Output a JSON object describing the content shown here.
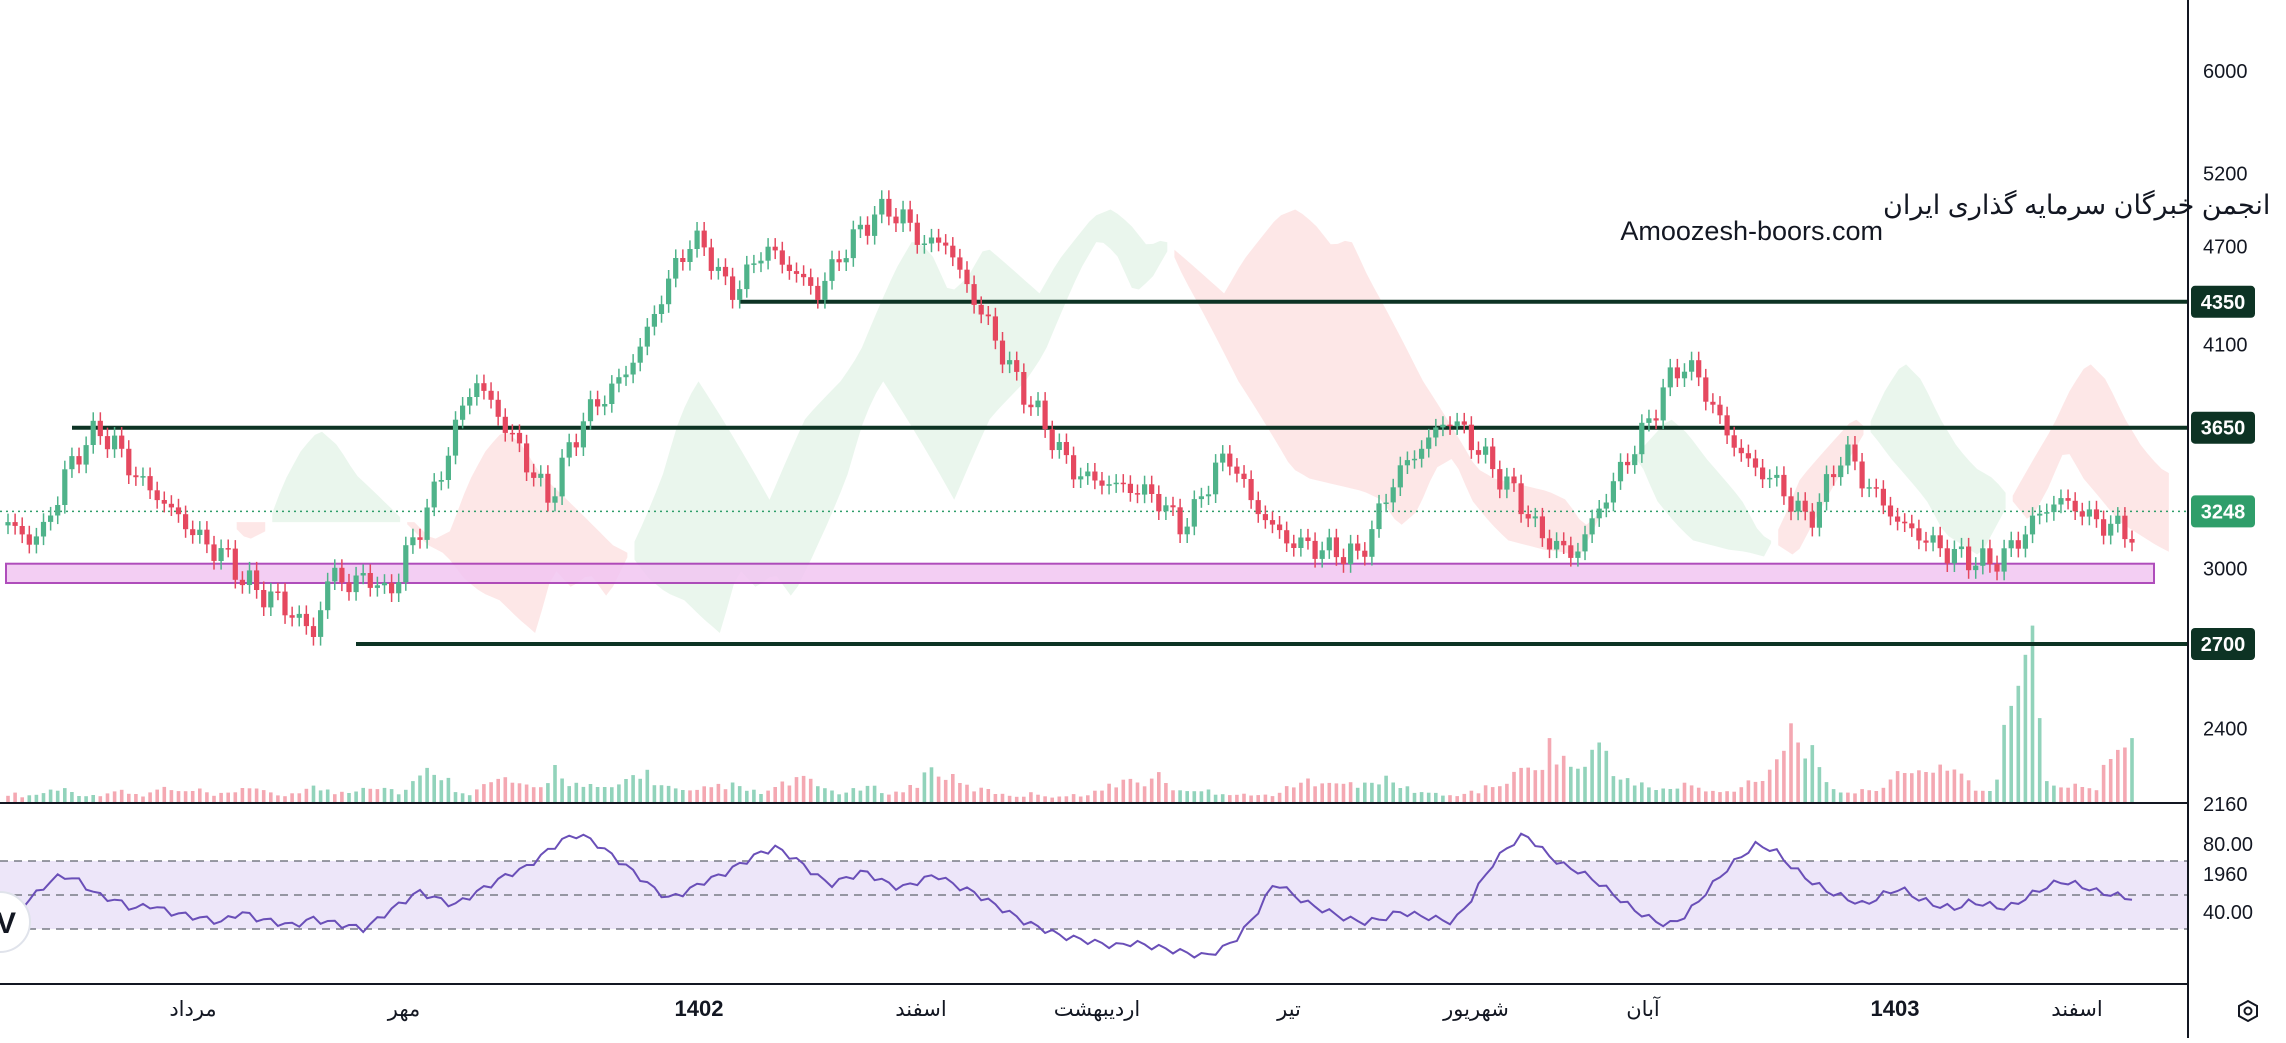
{
  "watermark": {
    "line1": "انجمن خبرگان سرمایه گذاری ایران",
    "line2": "Amoozesh-boors.com"
  },
  "colors": {
    "up": "#4fb38a",
    "down": "#e5485f",
    "level_line": "#0d3324",
    "zone_fill": "#f2c6f2",
    "zone_stroke": "#a22fb0",
    "cloud_green": "#e6f4ea",
    "cloud_red": "#fde3e3",
    "rsi_line": "#6a4fb8",
    "rsi_band": "#ede6f9",
    "last_price_badge": "#2f9e6a",
    "level_badge": "#0d3324"
  },
  "chart_data": [
    {
      "type": "candlestick",
      "price_axis_ticks": [
        "6000",
        "5200",
        "4700",
        "4100",
        "3000",
        "2400",
        "2160",
        "1960"
      ],
      "ylim": [
        1800,
        6300
      ],
      "scale": "log",
      "levels": [
        {
          "label": "4350",
          "value": 4350
        },
        {
          "label": "3650",
          "value": 3650
        },
        {
          "label": "2700",
          "value": 2700
        }
      ],
      "last_price": {
        "label": "3248",
        "value": 3248
      },
      "support_zone": [
        2940,
        3020
      ],
      "time_axis": [
        {
          "label": "مرداد",
          "major": false
        },
        {
          "label": "مهر",
          "major": false
        },
        {
          "label": "1402",
          "major": true
        },
        {
          "label": "اسفند",
          "major": false
        },
        {
          "label": "اردیبهشت",
          "major": false
        },
        {
          "label": "تیر",
          "major": false
        },
        {
          "label": "شهریور",
          "major": false
        },
        {
          "label": "آبان",
          "major": false
        },
        {
          "label": "1403",
          "major": true
        },
        {
          "label": "اسفند",
          "major": false
        }
      ],
      "close_path": [
        3200,
        3120,
        3160,
        3380,
        3540,
        3640,
        3560,
        3420,
        3340,
        3260,
        3180,
        3100,
        3060,
        2960,
        2900,
        2870,
        2800,
        2740,
        3000,
        2920,
        2980,
        2880,
        3030,
        3200,
        3400,
        3700,
        3900,
        3750,
        3600,
        3450,
        3300,
        3500,
        3700,
        3800,
        3900,
        4050,
        4300,
        4550,
        4750,
        4650,
        4400,
        4500,
        4700,
        4600,
        4500,
        4400,
        4600,
        4750,
        4900,
        4950,
        4850,
        4700,
        4750,
        4500,
        4300,
        4100,
        3900,
        3750,
        3600,
        3450,
        3400,
        3380,
        3360,
        3340,
        3300,
        3180,
        3250,
        3450,
        3500,
        3300,
        3200,
        3120,
        3100,
        3080,
        3070,
        3050,
        3200,
        3400,
        3500,
        3600,
        3700,
        3620,
        3500,
        3400,
        3300,
        3150,
        3100,
        3050,
        3200,
        3350,
        3500,
        3650,
        3850,
        4000,
        3900,
        3700,
        3550,
        3450,
        3400,
        3300,
        3200,
        3350,
        3550,
        3400,
        3300,
        3200,
        3150,
        3100,
        3060,
        3040,
        3020,
        3060,
        3150,
        3250,
        3300,
        3260,
        3200,
        3180,
        3150
      ],
      "volume_path": [
        3,
        2,
        3,
        5,
        3,
        2,
        4,
        3,
        2,
        5,
        3,
        4,
        2,
        3,
        6,
        3,
        2,
        4,
        5,
        3,
        4,
        6,
        5,
        3,
        8,
        12,
        5,
        3,
        6,
        8,
        5,
        4,
        12,
        6,
        5,
        4,
        7,
        11,
        6,
        4,
        3,
        5,
        6,
        4,
        3,
        5,
        8,
        6,
        4,
        3,
        5,
        4,
        3,
        6,
        12,
        8,
        5,
        4,
        3,
        2,
        3,
        2,
        2,
        3,
        4,
        8,
        6,
        9,
        5,
        3,
        4,
        3,
        3,
        2,
        3,
        5,
        7,
        9,
        6,
        5,
        8,
        6,
        4,
        3,
        2,
        3,
        4,
        6,
        9,
        12,
        18,
        14,
        10,
        22,
        8,
        6,
        5,
        4,
        6,
        4,
        3,
        5,
        8,
        12,
        25,
        20,
        6,
        4,
        3,
        5,
        8,
        9,
        11,
        13,
        10,
        4,
        3,
        38,
        60,
        8,
        5,
        7,
        4,
        26,
        18
      ],
      "rsi": {
        "axis_ticks": [
          "80.00",
          "40.00"
        ],
        "upper": 70,
        "lower": 30,
        "ylim": [
          0,
          100
        ],
        "path": [
          38,
          45,
          55,
          62,
          58,
          50,
          47,
          42,
          44,
          40,
          38,
          36,
          34,
          40,
          36,
          34,
          32,
          36,
          34,
          32,
          30,
          38,
          45,
          52,
          48,
          44,
          50,
          56,
          62,
          66,
          74,
          82,
          86,
          80,
          72,
          64,
          55,
          48,
          52,
          58,
          62,
          68,
          74,
          78,
          72,
          64,
          56,
          60,
          64,
          58,
          54,
          58,
          62,
          56,
          52,
          46,
          40,
          34,
          30,
          26,
          24,
          22,
          20,
          22,
          20,
          18,
          16,
          14,
          18,
          26,
          40,
          58,
          50,
          44,
          40,
          36,
          34,
          36,
          40,
          38,
          36,
          34,
          48,
          66,
          78,
          86,
          76,
          68,
          64,
          58,
          50,
          42,
          36,
          32,
          38,
          50,
          62,
          72,
          80,
          76,
          66,
          58,
          52,
          48,
          44,
          50,
          54,
          48,
          44,
          42,
          46,
          44,
          42,
          48,
          54,
          58,
          56,
          52,
          50,
          48
        ]
      }
    }
  ]
}
